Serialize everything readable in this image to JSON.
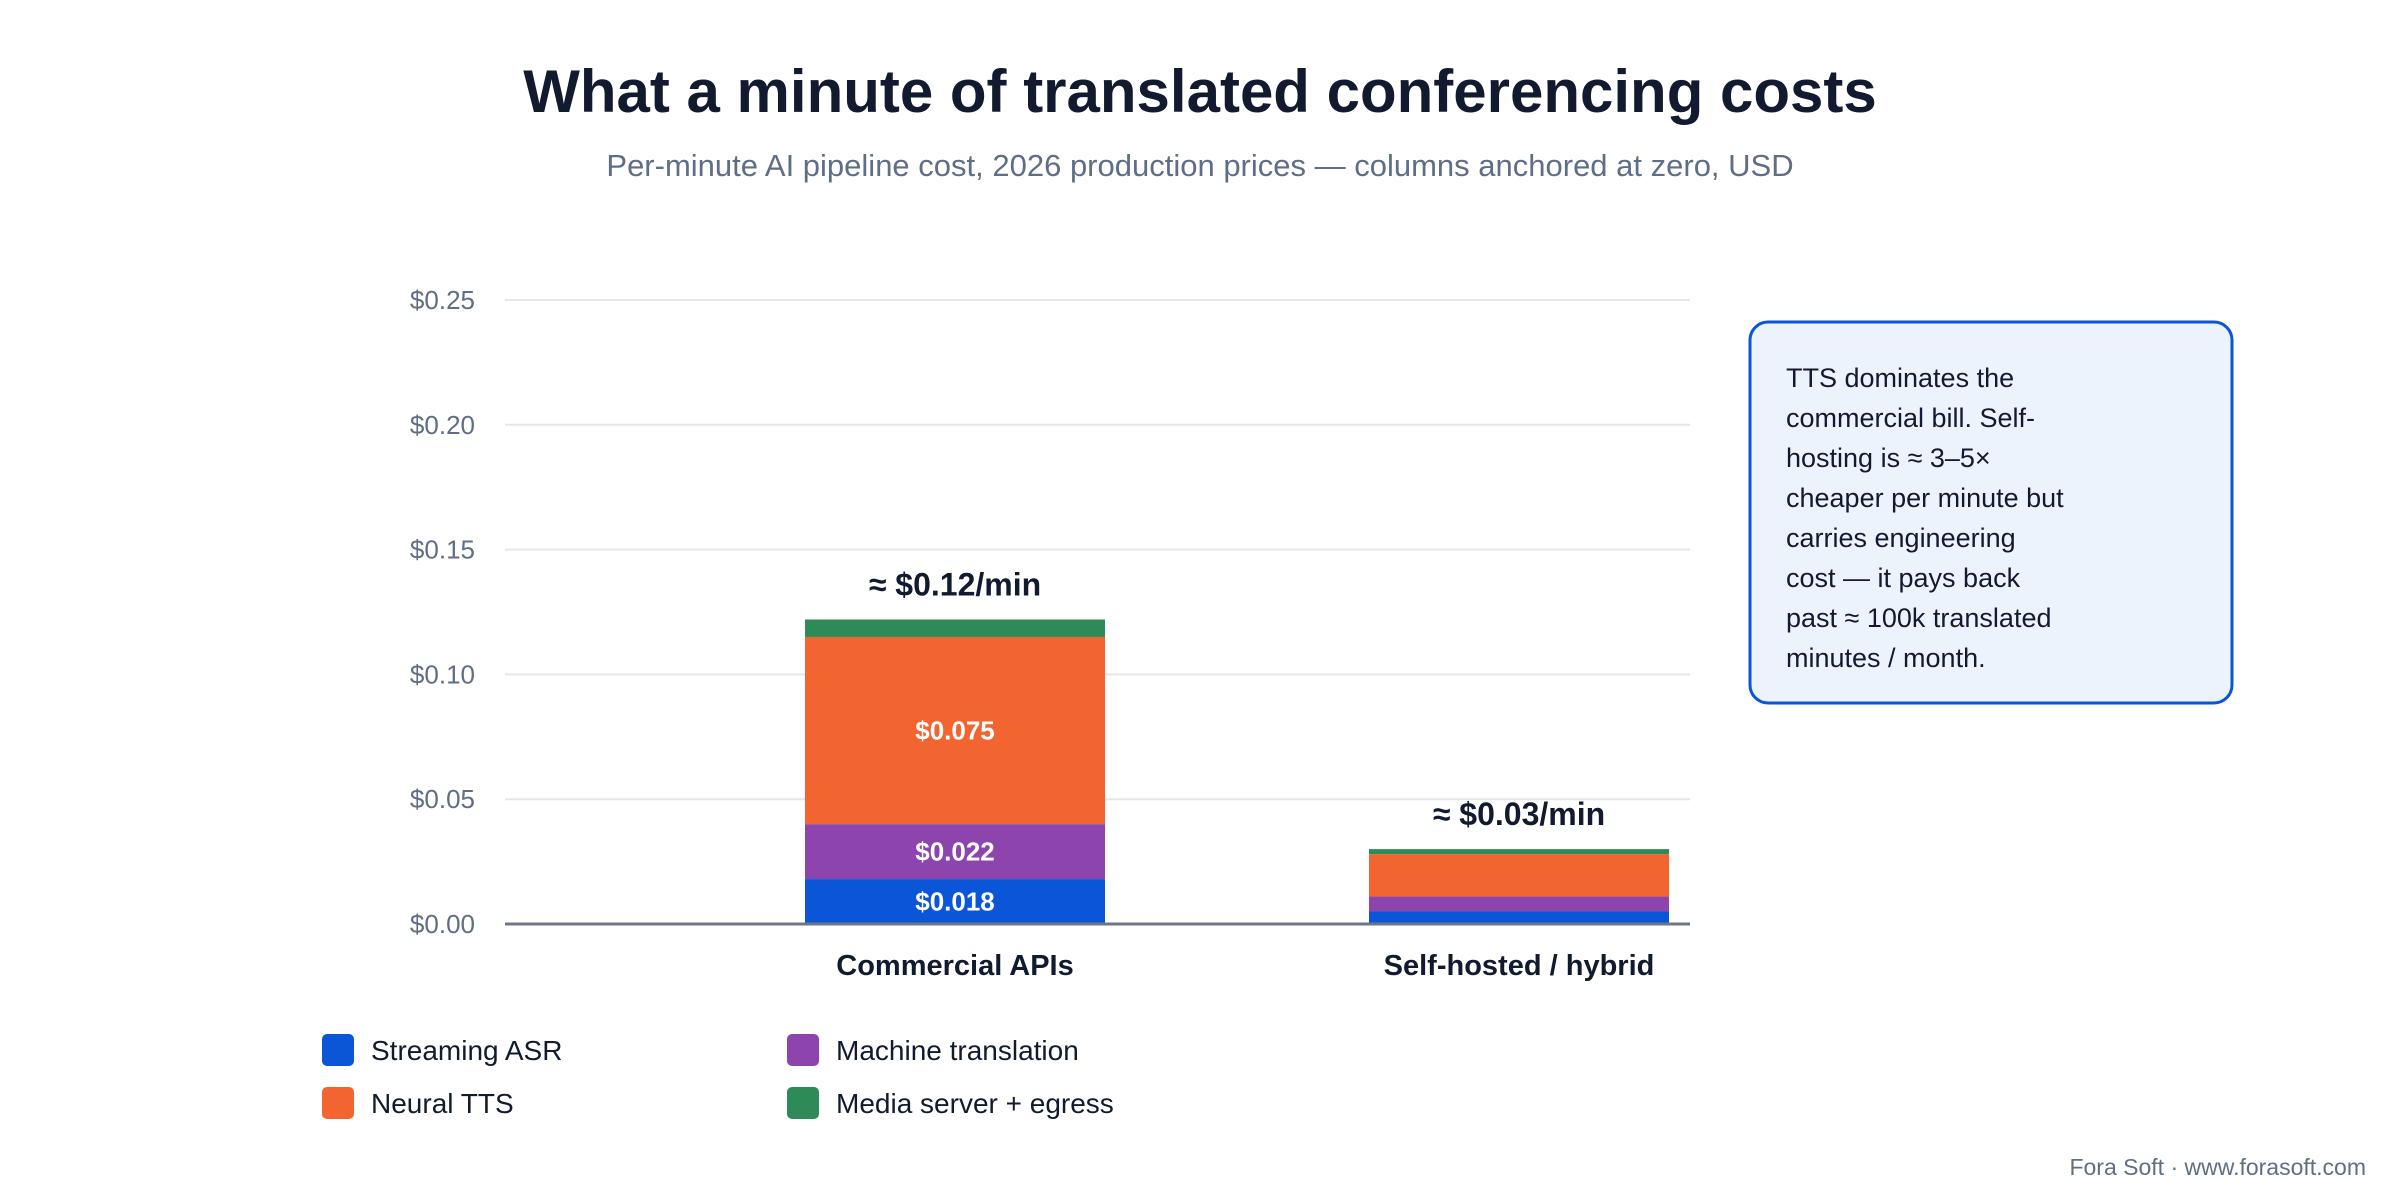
{
  "chart_data": {
    "type": "bar",
    "stacked": true,
    "title": "What a minute of translated conferencing costs",
    "subtitle": "Per-minute AI pipeline cost, 2026 production prices — columns anchored at zero, USD",
    "categories": [
      "Commercial APIs",
      "Self-hosted / hybrid"
    ],
    "series": [
      {
        "name": "Streaming ASR",
        "values": [
          0.018,
          0.005
        ],
        "color": "#0a56d6",
        "value_labels": [
          "$0.018",
          ""
        ]
      },
      {
        "name": "Machine translation",
        "values": [
          0.022,
          0.006
        ],
        "color": "#8e44ad",
        "value_labels": [
          "$0.022",
          ""
        ]
      },
      {
        "name": "Neural TTS",
        "values": [
          0.075,
          0.017
        ],
        "color": "#f26531",
        "value_labels": [
          "$0.075",
          ""
        ]
      },
      {
        "name": "Media server + egress",
        "values": [
          0.007,
          0.002
        ],
        "color": "#2e8b57",
        "value_labels": [
          "",
          ""
        ]
      }
    ],
    "totals": [
      "≈ $0.12/min",
      "≈ $0.03/min"
    ],
    "ylim": [
      0,
      0.25
    ],
    "y_ticks": [
      0,
      0.05,
      0.1,
      0.15,
      0.2,
      0.25
    ],
    "y_tick_labels": [
      "$0.00",
      "$0.05",
      "$0.10",
      "$0.15",
      "$0.20",
      "$0.25"
    ],
    "xlabel": "",
    "ylabel": "",
    "grid": true,
    "legend": {
      "placement": "bottom-left",
      "columns": 2
    },
    "annotation": {
      "lines": [
        "TTS dominates the",
        "commercial bill. Self-",
        "hosting is ≈ 3–5×",
        "cheaper per minute but",
        "carries engineering",
        "cost — it pays back",
        "past ≈ 100k translated",
        "minutes / month."
      ],
      "placement": "right"
    },
    "footer": "Fora Soft · www.forasoft.com"
  }
}
